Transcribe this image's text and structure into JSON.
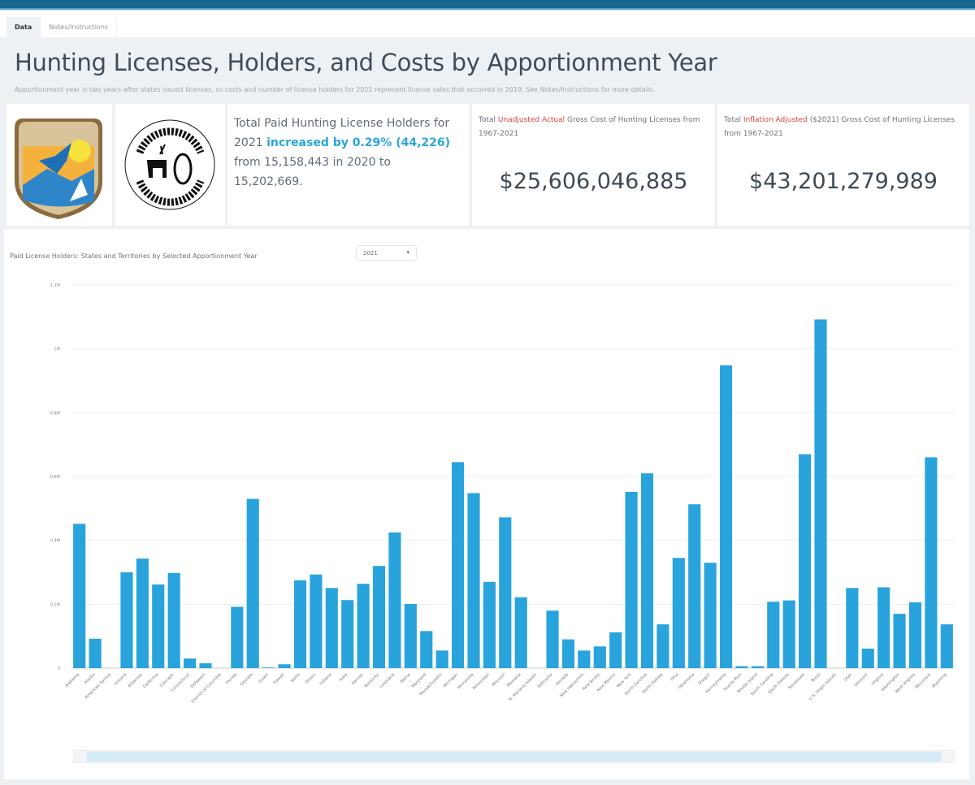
{
  "tabs": [
    {
      "label": "Data",
      "active": true
    },
    {
      "label": "Notes/Instructions",
      "active": false
    }
  ],
  "header": {
    "title": "Hunting Licenses, Holders, and Costs by Apportionment Year",
    "subtitle": "Apportionment year is two years after states issued licenses, so costs and number of license holders for 2021 represent license sales that occurred in 2019. See Notes/Instructions for more details."
  },
  "logos": {
    "usfws": "U.S. Fish & Wildlife Service",
    "wsfr": "Wildlife & Sport Fish Restoration"
  },
  "summary": {
    "p1": "Total Paid Hunting License Holders for 2021 ",
    "highlight": "increased by 0.29% (44,226)",
    "p2": " from 15,158,443 in 2020 to 15,202,669."
  },
  "kpi1": {
    "pre": "Total ",
    "highlight": "Unadjusted Actual",
    "post": " Gross Cost of Hunting Licenses from 1967-2021",
    "value": "$25,606,046,885"
  },
  "kpi2": {
    "pre": "Total ",
    "highlight": "Inflation Adjusted",
    "post": " ($2021) Gross Cost of Hunting Licenses from 1967-2021",
    "value": "$43,201,279,989"
  },
  "chart_control": {
    "title": "Paid License Holders: States and Territories by Selected Apportionment Year",
    "year": "2021"
  },
  "colors": {
    "bar": "#29a3dc",
    "accent": "#29a6de",
    "alert": "#d9453d"
  },
  "chart_data": {
    "type": "bar",
    "title": "Paid License Holders: States and Territories by Selected Apportionment Year",
    "xlabel": "",
    "ylabel": "",
    "ylim": [
      0,
      1200000
    ],
    "yticks": [
      {
        "v": 0,
        "label": "0"
      },
      {
        "v": 200000,
        "label": "0.2M"
      },
      {
        "v": 400000,
        "label": "0.4M"
      },
      {
        "v": 600000,
        "label": "0.6M"
      },
      {
        "v": 800000,
        "label": "0.8M"
      },
      {
        "v": 1000000,
        "label": "1M"
      },
      {
        "v": 1200000,
        "label": "1.2M"
      }
    ],
    "categories": [
      "Alabama",
      "Alaska",
      "American Samoa",
      "Arizona",
      "Arkansas",
      "California",
      "Colorado",
      "Connecticut",
      "Delaware",
      "District of Columbia",
      "Florida",
      "Georgia",
      "Guam",
      "Hawaii",
      "Idaho",
      "Illinois",
      "Indiana",
      "Iowa",
      "Kansas",
      "Kentucky",
      "Louisiana",
      "Maine",
      "Maryland",
      "Massachusetts",
      "Michigan",
      "Minnesota",
      "Mississippi",
      "Missouri",
      "Montana",
      "N. Mariana Islands",
      "Nebraska",
      "Nevada",
      "New Hampshire",
      "New Jersey",
      "New Mexico",
      "New York",
      "North Carolina",
      "North Dakota",
      "Ohio",
      "Oklahoma",
      "Oregon",
      "Pennsylvania",
      "Puerto Rico",
      "Rhode Island",
      "South Carolina",
      "South Dakota",
      "Tennessee",
      "Texas",
      "U.S. Virgin Islands",
      "Utah",
      "Vermont",
      "Virginia",
      "Washington",
      "West Virginia",
      "Wisconsin",
      "Wyoming"
    ],
    "values": [
      452000,
      92000,
      0,
      300000,
      343000,
      262000,
      298000,
      30000,
      15000,
      0,
      192000,
      530000,
      2000,
      12000,
      275000,
      293000,
      251000,
      213000,
      264000,
      320000,
      425000,
      201000,
      116000,
      55000,
      645000,
      548000,
      270000,
      472000,
      222000,
      0,
      180000,
      90000,
      55000,
      68000,
      112000,
      552000,
      610000,
      137000,
      345000,
      513000,
      330000,
      948000,
      6000,
      6000,
      208000,
      212000,
      670000,
      1092000,
      0,
      251000,
      61000,
      253000,
      170000,
      206000,
      660000,
      137000
    ]
  }
}
